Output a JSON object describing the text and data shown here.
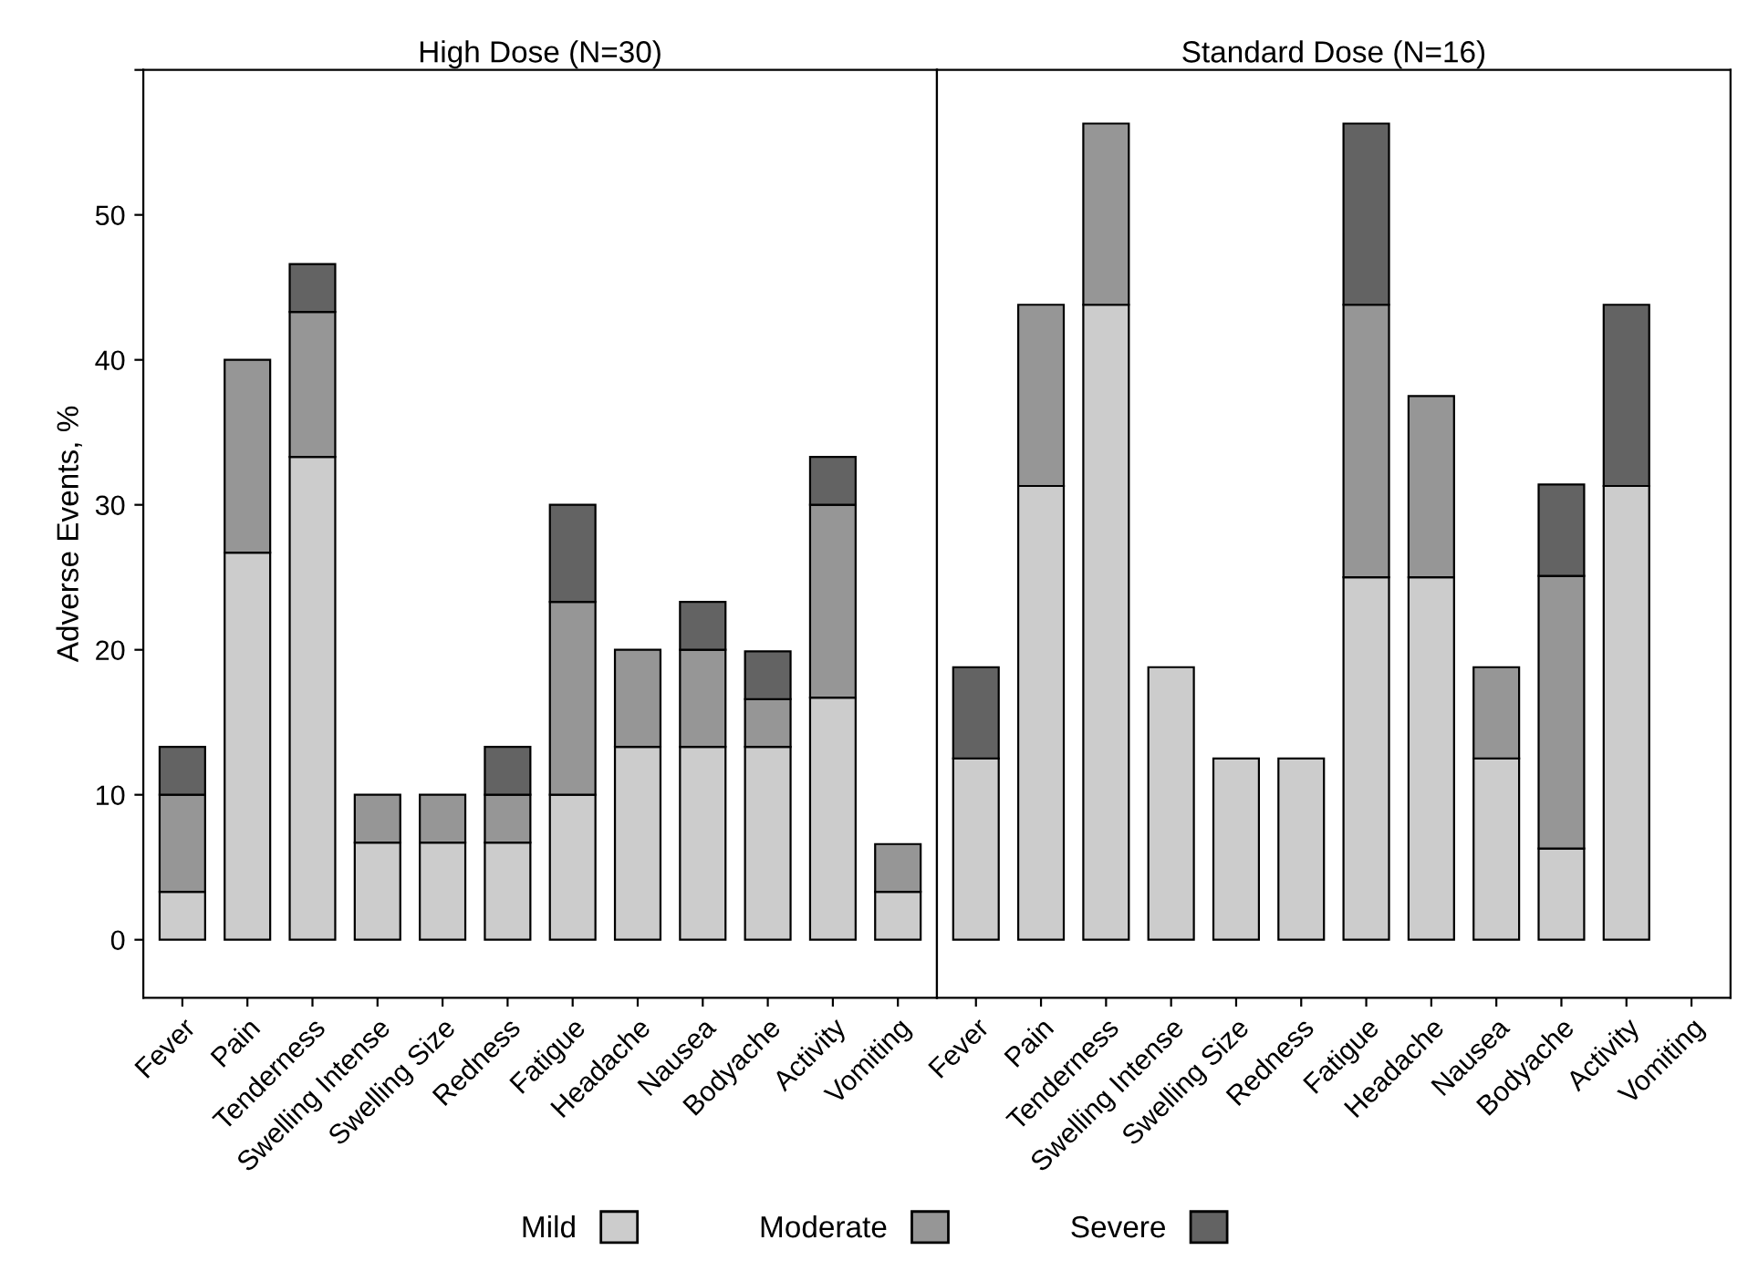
{
  "chart_data": [
    {
      "type": "bar",
      "title": "High Dose (N=30)",
      "ylabel": "Adverse Events, %",
      "stacked": true,
      "legend": "bottom",
      "grid": false,
      "categories": [
        "Fever",
        "Pain",
        "Tenderness",
        "Swelling Intense",
        "Swelling Size",
        "Redness",
        "Fatigue",
        "Headache",
        "Nausea",
        "Bodyache",
        "Activity",
        "Vomiting"
      ],
      "series": [
        {
          "name": "Mild",
          "color": "#cccccc",
          "values": [
            3.3,
            26.7,
            33.3,
            6.7,
            6.7,
            6.7,
            10,
            13.3,
            13.3,
            13.3,
            16.7,
            3.3
          ]
        },
        {
          "name": "Moderate",
          "color": "#969696",
          "values": [
            6.7,
            13.3,
            10,
            3.3,
            3.3,
            3.3,
            13.3,
            6.7,
            6.7,
            3.3,
            13.3,
            3.3
          ]
        },
        {
          "name": "Severe",
          "color": "#636363",
          "values": [
            3.3,
            0,
            3.3,
            0,
            0,
            3.3,
            6.7,
            0,
            3.3,
            3.3,
            3.3,
            0
          ]
        }
      ],
      "ylim": [
        -4,
        60
      ],
      "yticks": [
        0,
        10,
        20,
        30,
        40,
        50,
        {
          "value": 60,
          "label": null
        }
      ]
    },
    {
      "type": "bar",
      "title": "Standard Dose (N=16)",
      "stacked": true,
      "legend": "bottom",
      "grid": false,
      "tick_labels": "x",
      "categories": [
        "Fever",
        "Pain",
        "Tenderness",
        "Swelling Intense",
        "Swelling Size",
        "Redness",
        "Fatigue",
        "Headache",
        "Nausea",
        "Bodyache",
        "Activity",
        "Vomiting"
      ],
      "series": [
        {
          "color": "#cccccc",
          "values": [
            12.5,
            31.3,
            43.8,
            18.8,
            12.5,
            12.5,
            25,
            25,
            12.5,
            6.3,
            31.3,
            0
          ]
        },
        {
          "color": "#969696",
          "values": [
            0,
            12.5,
            12.5,
            0,
            0,
            0,
            18.8,
            12.5,
            6.3,
            18.8,
            0,
            0
          ]
        },
        {
          "color": "#636363",
          "values": [
            6.3,
            0,
            0,
            0,
            0,
            0,
            12.5,
            0,
            0,
            6.3,
            12.5,
            0
          ]
        }
      ],
      "ylim": [
        -4,
        60
      ],
      "yticks": [
        0,
        10,
        20,
        30,
        40,
        50,
        {
          "value": 60,
          "label": null
        }
      ]
    }
  ]
}
